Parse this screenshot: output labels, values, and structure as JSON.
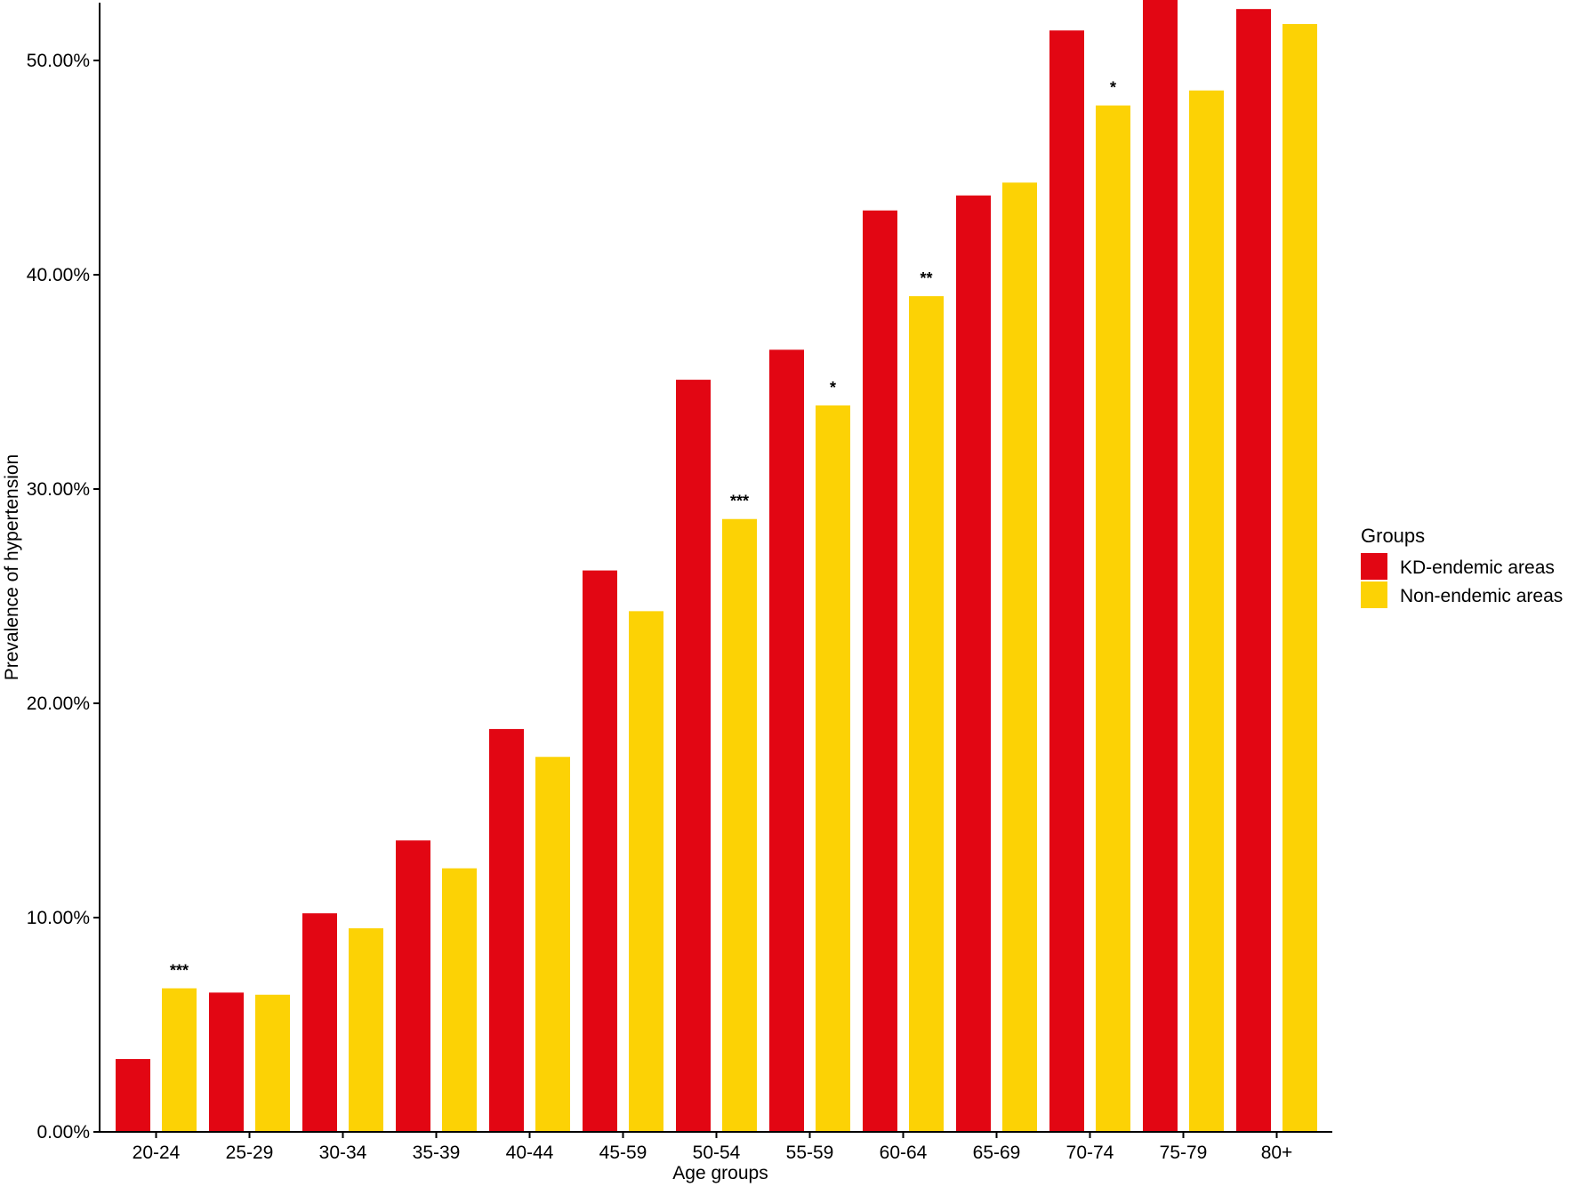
{
  "chart_data": {
    "type": "bar",
    "title": "",
    "xlabel": "Age groups",
    "ylabel": "Prevalence of hypertension",
    "ylim": [
      0,
      0.53
    ],
    "yticks": [
      "0.00%",
      "10.00%",
      "20.00%",
      "30.00%",
      "40.00%",
      "50.00%"
    ],
    "ytick_values": [
      0,
      0.1,
      0.2,
      0.3,
      0.4,
      0.5
    ],
    "categories": [
      "20-24",
      "25-29",
      "30-34",
      "35-39",
      "40-44",
      "45-59",
      "50-54",
      "55-59",
      "60-64",
      "65-69",
      "70-74",
      "75-79",
      "80+"
    ],
    "series": [
      {
        "name": "KD-endemic areas",
        "color": "#e20613",
        "values": [
          0.034,
          0.065,
          0.102,
          0.136,
          0.188,
          0.262,
          0.351,
          0.365,
          0.43,
          0.437,
          0.514,
          0.529,
          0.524
        ]
      },
      {
        "name": "Non-endemic areas",
        "color": "#fcd205",
        "values": [
          0.067,
          0.064,
          0.095,
          0.123,
          0.175,
          0.243,
          0.286,
          0.339,
          0.39,
          0.443,
          0.479,
          0.486,
          0.517
        ]
      }
    ],
    "annotations": [
      {
        "category": "20-24",
        "series": 1,
        "text": "***"
      },
      {
        "category": "50-54",
        "series": 1,
        "text": "***"
      },
      {
        "category": "55-59",
        "series": 1,
        "text": "*"
      },
      {
        "category": "60-64",
        "series": 1,
        "text": "**"
      },
      {
        "category": "70-74",
        "series": 1,
        "text": "*"
      }
    ],
    "legend": {
      "title": "Groups",
      "placement": "right"
    },
    "grid": false
  }
}
